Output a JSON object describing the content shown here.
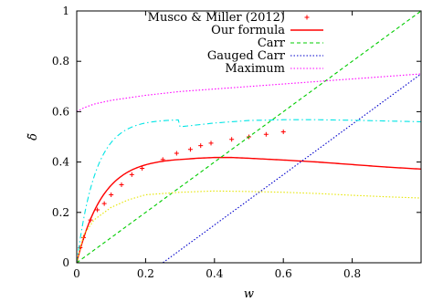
{
  "chart_data": {
    "type": "line",
    "xlabel": "w",
    "ylabel": "δ̃",
    "xlim": [
      0,
      1
    ],
    "ylim": [
      0,
      1
    ],
    "xticks": [
      "0",
      "0.2",
      "0.4",
      "0.6",
      "0.8"
    ],
    "yticks": [
      "0",
      "0.2",
      "0.4",
      "0.6",
      "0.8",
      "1"
    ],
    "grid": false,
    "legend_position": "top-left",
    "series": [
      {
        "name": "Musco & Miller (2012)",
        "style": "points",
        "color": "#ff0000",
        "x": [
          0.01,
          0.02,
          0.04,
          0.06,
          0.08,
          0.1,
          0.13,
          0.16,
          0.19,
          0.25,
          0.29,
          0.33,
          0.36,
          0.39,
          0.45,
          0.5,
          0.55,
          0.6
        ],
        "y": [
          0.06,
          0.1,
          0.17,
          0.21,
          0.235,
          0.27,
          0.31,
          0.35,
          0.375,
          0.41,
          0.435,
          0.45,
          0.465,
          0.475,
          0.49,
          0.5,
          0.51,
          0.52
        ]
      },
      {
        "name": "Our formula",
        "style": "solid",
        "color": "#ff0000",
        "x": [
          0,
          0.01,
          0.03,
          0.05,
          0.08,
          0.1,
          0.15,
          0.2,
          0.25,
          0.3,
          0.35,
          0.4,
          0.45,
          0.5,
          0.6,
          0.7,
          0.8,
          0.9,
          1.0
        ],
        "y": [
          0,
          0.07,
          0.14,
          0.19,
          0.25,
          0.28,
          0.34,
          0.37,
          0.395,
          0.41,
          0.415,
          0.418,
          0.418,
          0.415,
          0.408,
          0.4,
          0.39,
          0.38,
          0.372
        ]
      },
      {
        "name": "Carr",
        "style": "dashed",
        "color": "#00cc00",
        "x": [
          0,
          1
        ],
        "y": [
          0,
          1
        ]
      },
      {
        "name": "Gauged Carr",
        "style": "dotted",
        "color": "#0000cc",
        "x": [
          0,
          0.25,
          1
        ],
        "y": [
          0,
          0,
          0.75
        ]
      },
      {
        "name": "Maximum",
        "style": "dotted",
        "color": "#ff00ff",
        "x": [
          0,
          0.02,
          0.05,
          0.1,
          0.2,
          0.3,
          0.4,
          0.5,
          0.6,
          0.7,
          0.8,
          0.9,
          1.0
        ],
        "y": [
          0.6,
          0.615,
          0.63,
          0.645,
          0.665,
          0.68,
          0.69,
          0.7,
          0.71,
          0.72,
          0.73,
          0.74,
          0.75
        ]
      },
      {
        "style": "dash-dot",
        "color": "#00e5e5",
        "x": [
          0,
          0.01,
          0.02,
          0.04,
          0.06,
          0.1,
          0.15,
          0.2,
          0.3,
          0.4,
          0.5,
          0.6,
          0.7,
          0.8,
          0.9,
          1.0
        ],
        "y": [
          0,
          0.18,
          0.26,
          0.34,
          0.39,
          0.445,
          0.485,
          0.51,
          0.54,
          0.555,
          0.565,
          0.568,
          0.568,
          0.566,
          0.563,
          0.56
        ]
      },
      {
        "style": "dotted",
        "color": "#e5e500",
        "x": [
          0,
          0.02,
          0.05,
          0.1,
          0.15,
          0.2,
          0.3,
          0.4,
          0.5,
          0.6,
          0.7,
          0.8,
          0.9,
          1.0
        ],
        "y": [
          0,
          0.11,
          0.17,
          0.22,
          0.25,
          0.27,
          0.28,
          0.285,
          0.283,
          0.28,
          0.275,
          0.268,
          0.262,
          0.257
        ]
      }
    ]
  }
}
